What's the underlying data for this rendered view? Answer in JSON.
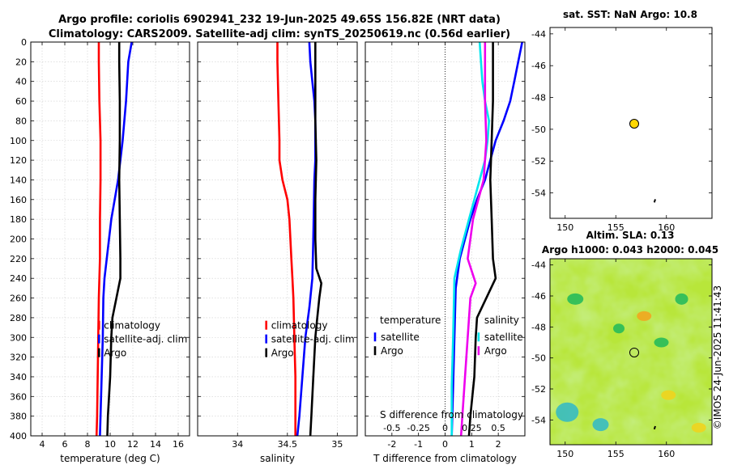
{
  "header": {
    "title_line1": "Argo profile: coriolis 6902941_232 19-Jun-2025 49.65S 156.82E (NRT data)",
    "title_line2": "Climatology: CARS2009. Satellite-adj clim: synTS_20250619.nc (0.56d earlier)"
  },
  "colors": {
    "climatology": "#ff0000",
    "satellite": "#0000ff",
    "argo": "#000000",
    "temperature_diff_satellite": "#00e5ee",
    "salinity_diff_argo": "#ee00ee",
    "sst_marker": "#ffd700",
    "grid": "#cfcfcf"
  },
  "chart_data": [
    {
      "id": "temperature",
      "type": "line",
      "xlabel": "temperature (deg C)",
      "ylabel": "depth (m)",
      "xlim": [
        3,
        17
      ],
      "ylim": [
        0,
        400
      ],
      "y_reversed": true,
      "xticks": [
        4,
        6,
        8,
        10,
        12,
        14,
        16
      ],
      "yticks": [
        0,
        20,
        40,
        60,
        80,
        100,
        120,
        140,
        160,
        180,
        200,
        220,
        240,
        260,
        280,
        300,
        320,
        340,
        360,
        380,
        400
      ],
      "grid": true,
      "legend": {
        "position": "lower-right",
        "entries": [
          "climatology",
          "satellite-adj. clim",
          "Argo"
        ]
      },
      "series": [
        {
          "name": "climatology",
          "color": "#ff0000",
          "points": [
            [
              9.0,
              0
            ],
            [
              9.0,
              20
            ],
            [
              9.05,
              60
            ],
            [
              9.15,
              100
            ],
            [
              9.15,
              140
            ],
            [
              9.1,
              180
            ],
            [
              9.1,
              220
            ],
            [
              9.0,
              260
            ],
            [
              8.95,
              300
            ],
            [
              8.9,
              340
            ],
            [
              8.85,
              380
            ],
            [
              8.8,
              400
            ]
          ]
        },
        {
          "name": "satellite-adj. clim",
          "color": "#0000ff",
          "points": [
            [
              11.9,
              0
            ],
            [
              11.6,
              20
            ],
            [
              11.5,
              40
            ],
            [
              11.4,
              60
            ],
            [
              11.25,
              80
            ],
            [
              11.1,
              100
            ],
            [
              10.9,
              120
            ],
            [
              10.7,
              140
            ],
            [
              10.4,
              160
            ],
            [
              10.1,
              180
            ],
            [
              9.9,
              200
            ],
            [
              9.7,
              220
            ],
            [
              9.5,
              240
            ],
            [
              9.4,
              260
            ],
            [
              9.35,
              300
            ],
            [
              9.25,
              340
            ],
            [
              9.15,
              380
            ],
            [
              9.1,
              400
            ]
          ]
        },
        {
          "name": "Argo",
          "color": "#000000",
          "points": [
            [
              10.8,
              0
            ],
            [
              10.8,
              20
            ],
            [
              10.85,
              60
            ],
            [
              10.85,
              100
            ],
            [
              10.8,
              140
            ],
            [
              10.85,
              180
            ],
            [
              10.9,
              220
            ],
            [
              10.9,
              240
            ],
            [
              10.55,
              260
            ],
            [
              10.2,
              280
            ],
            [
              10.1,
              300
            ],
            [
              10.0,
              340
            ],
            [
              9.8,
              380
            ],
            [
              9.75,
              400
            ]
          ]
        }
      ]
    },
    {
      "id": "salinity",
      "type": "line",
      "xlabel": "salinity",
      "xlim": [
        33.6,
        35.2
      ],
      "ylim": [
        0,
        400
      ],
      "y_reversed": true,
      "xticks": [
        34,
        34.5,
        35
      ],
      "yticks": [
        0,
        20,
        40,
        60,
        80,
        100,
        120,
        140,
        160,
        180,
        200,
        220,
        240,
        260,
        280,
        300,
        320,
        340,
        360,
        380,
        400
      ],
      "grid": true,
      "legend": {
        "position": "lower-right",
        "entries": [
          "climatology",
          "satellite-adj. clim",
          "Argo"
        ]
      },
      "series": [
        {
          "name": "climatology",
          "color": "#ff0000",
          "points": [
            [
              34.4,
              0
            ],
            [
              34.4,
              20
            ],
            [
              34.41,
              60
            ],
            [
              34.42,
              100
            ],
            [
              34.42,
              120
            ],
            [
              34.45,
              140
            ],
            [
              34.5,
              160
            ],
            [
              34.52,
              180
            ],
            [
              34.54,
              220
            ],
            [
              34.55,
              240
            ],
            [
              34.56,
              260
            ],
            [
              34.57,
              300
            ],
            [
              34.58,
              340
            ],
            [
              34.58,
              380
            ],
            [
              34.58,
              400
            ]
          ]
        },
        {
          "name": "satellite-adj. clim",
          "color": "#0000ff",
          "points": [
            [
              34.72,
              0
            ],
            [
              34.73,
              20
            ],
            [
              34.75,
              40
            ],
            [
              34.77,
              60
            ],
            [
              34.78,
              80
            ],
            [
              34.78,
              120
            ],
            [
              34.77,
              140
            ],
            [
              34.76,
              200
            ],
            [
              34.75,
              240
            ],
            [
              34.72,
              270
            ],
            [
              34.68,
              300
            ],
            [
              34.65,
              340
            ],
            [
              34.62,
              380
            ],
            [
              34.6,
              400
            ]
          ]
        },
        {
          "name": "Argo",
          "color": "#000000",
          "points": [
            [
              34.78,
              0
            ],
            [
              34.78,
              40
            ],
            [
              34.78,
              80
            ],
            [
              34.79,
              120
            ],
            [
              34.78,
              160
            ],
            [
              34.78,
              200
            ],
            [
              34.79,
              230
            ],
            [
              34.84,
              245
            ],
            [
              34.82,
              260
            ],
            [
              34.8,
              280
            ],
            [
              34.78,
              300
            ],
            [
              34.76,
              340
            ],
            [
              34.74,
              380
            ],
            [
              34.73,
              400
            ]
          ]
        }
      ]
    },
    {
      "id": "difference",
      "type": "line",
      "xlabel": "T difference from climatology",
      "xlabel_top": "S difference from climatology",
      "xlim": [
        -3,
        3
      ],
      "ylim": [
        0,
        400
      ],
      "y_reversed": true,
      "xticks": [
        -2,
        -1,
        0,
        1,
        2
      ],
      "xticks_top": [
        -0.5,
        -0.25,
        0,
        0.25,
        0.5
      ],
      "xticks_top_labels": [
        "-0.5",
        "-0.25",
        "0",
        "0.25",
        "0.5"
      ],
      "yticks": [
        0,
        20,
        40,
        60,
        80,
        100,
        120,
        140,
        160,
        180,
        200,
        220,
        240,
        260,
        280,
        300,
        320,
        340,
        360,
        380,
        400
      ],
      "grid": true,
      "legend_left": {
        "title": "temperature",
        "entries": [
          "satellite",
          "Argo"
        ]
      },
      "legend_right": {
        "title": "salinity",
        "entries": [
          "satellite",
          "Argo"
        ]
      },
      "series": [
        {
          "name": "temperature satellite",
          "color": "#0000ff",
          "points": [
            [
              2.9,
              0
            ],
            [
              2.75,
              20
            ],
            [
              2.6,
              40
            ],
            [
              2.45,
              60
            ],
            [
              2.2,
              80
            ],
            [
              1.9,
              100
            ],
            [
              1.7,
              120
            ],
            [
              1.5,
              140
            ],
            [
              1.2,
              160
            ],
            [
              0.95,
              180
            ],
            [
              0.75,
              200
            ],
            [
              0.55,
              220
            ],
            [
              0.4,
              250
            ],
            [
              0.35,
              300
            ],
            [
              0.3,
              350
            ],
            [
              0.25,
              400
            ]
          ]
        },
        {
          "name": "temperature Argo",
          "color": "#000000",
          "points": [
            [
              1.8,
              0
            ],
            [
              1.8,
              20
            ],
            [
              1.8,
              60
            ],
            [
              1.75,
              100
            ],
            [
              1.7,
              140
            ],
            [
              1.75,
              180
            ],
            [
              1.8,
              220
            ],
            [
              1.9,
              240
            ],
            [
              1.55,
              260
            ],
            [
              1.2,
              280
            ],
            [
              1.15,
              300
            ],
            [
              1.1,
              340
            ],
            [
              0.95,
              380
            ],
            [
              0.9,
              400
            ]
          ]
        },
        {
          "name": "salinity satellite",
          "color": "#00e5ee",
          "points": [
            [
              1.3,
              0
            ],
            [
              1.35,
              20
            ],
            [
              1.4,
              40
            ],
            [
              1.5,
              60
            ],
            [
              1.65,
              80
            ],
            [
              1.6,
              100
            ],
            [
              1.5,
              120
            ],
            [
              1.3,
              140
            ],
            [
              0.9,
              180
            ],
            [
              0.6,
              210
            ],
            [
              0.35,
              240
            ],
            [
              0.3,
              300
            ],
            [
              0.25,
              350
            ],
            [
              0.25,
              400
            ]
          ]
        },
        {
          "name": "salinity Argo",
          "color": "#ee00ee",
          "points": [
            [
              1.5,
              0
            ],
            [
              1.5,
              20
            ],
            [
              1.5,
              60
            ],
            [
              1.55,
              100
            ],
            [
              1.45,
              140
            ],
            [
              1.05,
              180
            ],
            [
              0.85,
              220
            ],
            [
              1.15,
              245
            ],
            [
              0.95,
              260
            ],
            [
              0.85,
              300
            ],
            [
              0.75,
              340
            ],
            [
              0.65,
              380
            ],
            [
              0.6,
              400
            ]
          ]
        }
      ]
    },
    {
      "id": "sst_map",
      "type": "scatter",
      "title": "sat. SST: NaN Argo: 10.8",
      "xlim": [
        148.5,
        164.5
      ],
      "ylim": [
        -55.6,
        -43.6
      ],
      "xticks": [
        150,
        155,
        160
      ],
      "yticks": [
        -44,
        -46,
        -48,
        -50,
        -52,
        -54
      ],
      "points": [
        {
          "lon": 156.82,
          "lat": -49.65,
          "label": "Argo"
        }
      ],
      "track": [
        [
          158.8,
          -54.6
        ],
        [
          158.9,
          -54.4
        ]
      ]
    },
    {
      "id": "sla_map",
      "type": "heatmap",
      "title_line1": "Altim. SLA: 0.13",
      "title_line2": "Argo h1000: 0.043 h2000: 0.045",
      "xlim": [
        148.5,
        164.5
      ],
      "ylim": [
        -55.6,
        -43.6
      ],
      "xticks": [
        150,
        155,
        160
      ],
      "yticks": [
        -44,
        -46,
        -48,
        -50,
        -52,
        -54
      ],
      "points": [
        {
          "lon": 156.82,
          "lat": -49.65,
          "label": "Argo"
        }
      ],
      "track": [
        [
          158.8,
          -54.6
        ],
        [
          158.9,
          -54.4
        ]
      ]
    }
  ],
  "watermark": "©IMOS 24-Jun-2025 11:41:43"
}
